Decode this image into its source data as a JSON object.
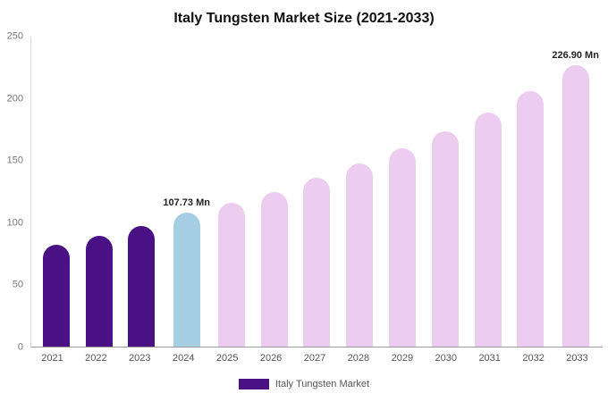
{
  "title": "Italy Tungsten Market Size (2021-2033)",
  "legend": {
    "label": "Italy Tungsten Market",
    "swatch_color": "#4a1185"
  },
  "colors": {
    "historical": "#4a1185",
    "highlight": "#a6cee3",
    "forecast": "#eccdf0",
    "axis_line": "#9a9a9a",
    "tick_text": "#777777"
  },
  "chart_data": {
    "type": "bar",
    "title": "Italy Tungsten Market Size (2021-2033)",
    "categories": [
      "2021",
      "2022",
      "2023",
      "2024",
      "2025",
      "2026",
      "2027",
      "2028",
      "2029",
      "2030",
      "2031",
      "2032",
      "2033"
    ],
    "values": [
      82,
      89,
      97,
      107.73,
      116,
      125,
      136,
      148,
      160,
      174,
      189,
      206,
      226.9
    ],
    "bar_colors": [
      "#4a1185",
      "#4a1185",
      "#4a1185",
      "#a6cee3",
      "#eccdf0",
      "#eccdf0",
      "#eccdf0",
      "#eccdf0",
      "#eccdf0",
      "#eccdf0",
      "#eccdf0",
      "#eccdf0",
      "#eccdf0"
    ],
    "annotations": [
      {
        "index": 3,
        "text": "107.73 Mn"
      },
      {
        "index": 12,
        "text": "226.90 Mn"
      }
    ],
    "xlabel": "",
    "ylabel": "",
    "ylim": [
      0,
      250
    ],
    "yticks": [
      0,
      50,
      100,
      150,
      200,
      250
    ],
    "grid": false,
    "legend_position": "bottom",
    "legend_entries": [
      "Italy Tungsten Market"
    ],
    "units": "Mn"
  }
}
